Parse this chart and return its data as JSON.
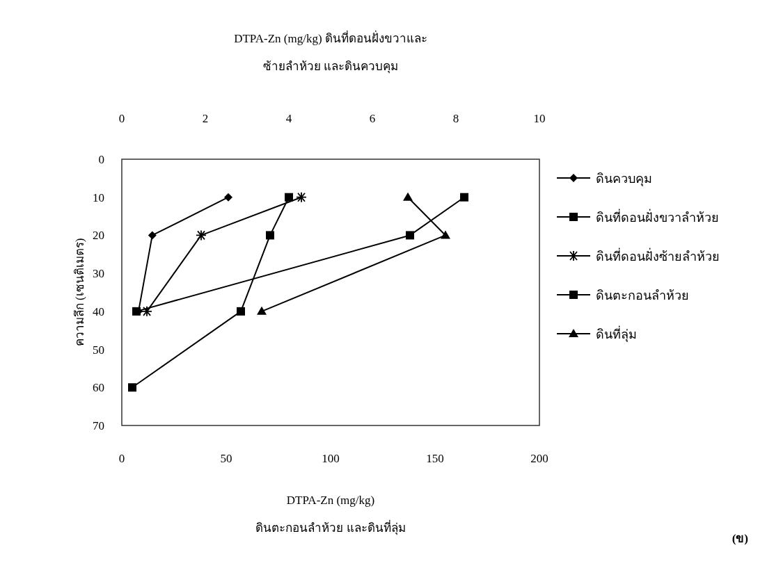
{
  "chart_data": {
    "type": "line",
    "x2label": "DTPA-Zn (mg/kg) ดินที่ดอนฝั่งขวาและ\nซ้ายลำห้วย และดินควบคุม",
    "xlabel": "DTPA-Zn (mg/kg)\nดินตะกอนลำห้วย และดินที่ลุ่ม",
    "ylabel": "ความลึก (เซนติเมตร)",
    "annotations": [
      "(ข)"
    ],
    "xlim": [
      0,
      200
    ],
    "xticks": [
      0,
      50,
      100,
      150,
      200
    ],
    "x2lim": [
      0,
      10
    ],
    "x2ticks": [
      0,
      2,
      4,
      6,
      8,
      10
    ],
    "ylim": [
      70,
      0
    ],
    "yticks": [
      0,
      10,
      20,
      30,
      40,
      50,
      60,
      70
    ],
    "legend": "right",
    "series": [
      {
        "name": "ดินควบคุม",
        "color": "#000000",
        "axis": "x2",
        "marker": "diamond",
        "x": [
          2.55,
          0.73,
          0.4
        ],
        "values": [
          10,
          20,
          40
        ]
      },
      {
        "name": "ดินที่ดอนฝั่งขวาลำห้วย",
        "color": "#000000",
        "axis": "x2",
        "marker": "square",
        "x": [
          8.2,
          6.9,
          0.35
        ],
        "values": [
          10,
          20,
          40
        ]
      },
      {
        "name": "ดินที่ดอนฝั่งซ้ายลำห้วย",
        "color": "#000000",
        "axis": "x2",
        "marker": "cross",
        "x": [
          4.3,
          1.9,
          0.6
        ],
        "values": [
          10,
          20,
          40
        ]
      },
      {
        "name": "ดินตะกอนลำห้วย",
        "color": "#000000",
        "marker": "square",
        "x": [
          80,
          71,
          57,
          5
        ],
        "values": [
          10,
          20,
          40,
          60
        ]
      },
      {
        "name": "ดินที่ลุ่ม",
        "color": "#000000",
        "marker": "triangle",
        "x": [
          137,
          155,
          67
        ],
        "values": [
          10,
          20,
          40
        ]
      }
    ]
  }
}
